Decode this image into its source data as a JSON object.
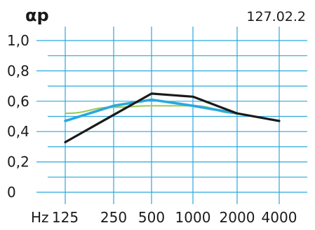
{
  "page": {
    "code": "127.02.2"
  },
  "chart_data": {
    "type": "line",
    "ylabel": "αp",
    "xlabel": "Hz",
    "categories": [
      "125",
      "250",
      "500",
      "1000",
      "2000",
      "4000"
    ],
    "y_ticks": [
      "0",
      "0,2",
      "0,4",
      "0,6",
      "0,8",
      "1,0"
    ],
    "y_tick_values": [
      0,
      0.2,
      0.4,
      0.6,
      0.8,
      1.0
    ],
    "ylim": [
      0,
      1.0
    ],
    "grid": true,
    "series": [
      {
        "color": "#9ccb5b",
        "values": [
          0.52,
          0.56,
          0.57,
          0.57,
          0.52,
          null
        ]
      },
      {
        "color": "#29a8e0",
        "values": [
          0.47,
          0.57,
          0.61,
          0.57,
          0.52,
          null
        ]
      },
      {
        "color": "#1a1a1a",
        "values": [
          0.33,
          0.51,
          0.65,
          0.63,
          0.52,
          0.47
        ]
      }
    ]
  }
}
